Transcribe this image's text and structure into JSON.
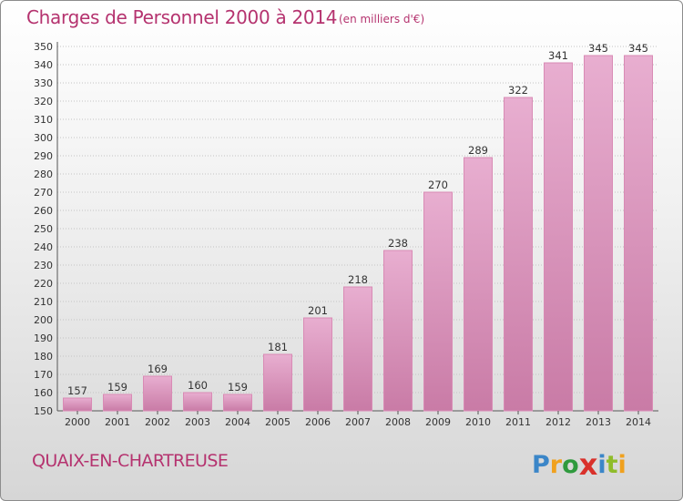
{
  "header": {
    "title": "Charges de Personnel 2000 à 2014",
    "subtitle": "(en milliers d'€)"
  },
  "footer": {
    "commune": "QUAIX-EN-CHARTREUSE",
    "logo_letters": [
      "P",
      "r",
      "o",
      "x",
      "i",
      "t",
      "i"
    ],
    "logo_colors": [
      "#3b86c8",
      "#f0a11e",
      "#2f9a3e",
      "#d9312b",
      "#3b86c8",
      "#8fbc2a",
      "#f0a11e"
    ]
  },
  "chart_data": {
    "type": "bar",
    "categories": [
      "2000",
      "2001",
      "2002",
      "2003",
      "2004",
      "2005",
      "2006",
      "2007",
      "2008",
      "2009",
      "2010",
      "2011",
      "2012",
      "2013",
      "2014"
    ],
    "values": [
      157,
      159,
      169,
      160,
      159,
      181,
      201,
      218,
      238,
      270,
      289,
      322,
      341,
      345,
      345
    ],
    "ylim": [
      150,
      350
    ],
    "yticks": [
      150,
      160,
      170,
      180,
      190,
      200,
      210,
      220,
      230,
      240,
      250,
      260,
      270,
      280,
      290,
      300,
      310,
      320,
      330,
      340,
      350
    ],
    "grid": true,
    "bar_color": "#d98bb5",
    "bar_color_light": "#e8aed0",
    "bar_color_dark": "#c97ba6"
  }
}
